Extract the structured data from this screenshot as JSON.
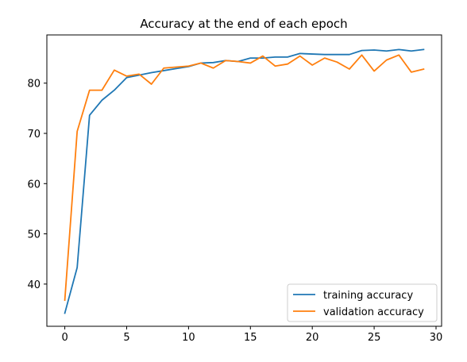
{
  "chart_data": {
    "type": "line",
    "title": "Accuracy at the end of each epoch",
    "xlabel": "",
    "ylabel": "",
    "xlim": [
      -1.45,
      30.45
    ],
    "ylim": [
      31.6,
      89.6
    ],
    "xticks": [
      0,
      5,
      10,
      15,
      20,
      25,
      30
    ],
    "yticks": [
      40,
      50,
      60,
      70,
      80
    ],
    "grid": false,
    "legend_position": "lower-right",
    "x": [
      0,
      1,
      2,
      3,
      4,
      5,
      6,
      7,
      8,
      9,
      10,
      11,
      12,
      13,
      14,
      15,
      16,
      17,
      18,
      19,
      20,
      21,
      22,
      23,
      24,
      25,
      26,
      27,
      28,
      29
    ],
    "series": [
      {
        "name": "training accuracy",
        "color": "#1f77b4",
        "values": [
          34.2,
          43.3,
          73.6,
          76.6,
          78.6,
          81.1,
          81.6,
          82.1,
          82.5,
          82.9,
          83.3,
          84.0,
          84.1,
          84.5,
          84.3,
          85.0,
          85.0,
          85.2,
          85.2,
          85.9,
          85.8,
          85.7,
          85.7,
          85.7,
          86.5,
          86.6,
          86.4,
          86.7,
          86.4,
          86.7
        ]
      },
      {
        "name": "validation accuracy",
        "color": "#ff7f0e",
        "values": [
          36.8,
          70.4,
          78.6,
          78.6,
          82.6,
          81.4,
          81.8,
          79.8,
          83.0,
          83.2,
          83.4,
          84.0,
          83.0,
          84.5,
          84.3,
          84.0,
          85.4,
          83.4,
          83.8,
          85.4,
          83.6,
          85.0,
          84.2,
          82.8,
          85.6,
          82.4,
          84.6,
          85.6,
          82.2,
          82.8
        ]
      }
    ]
  }
}
